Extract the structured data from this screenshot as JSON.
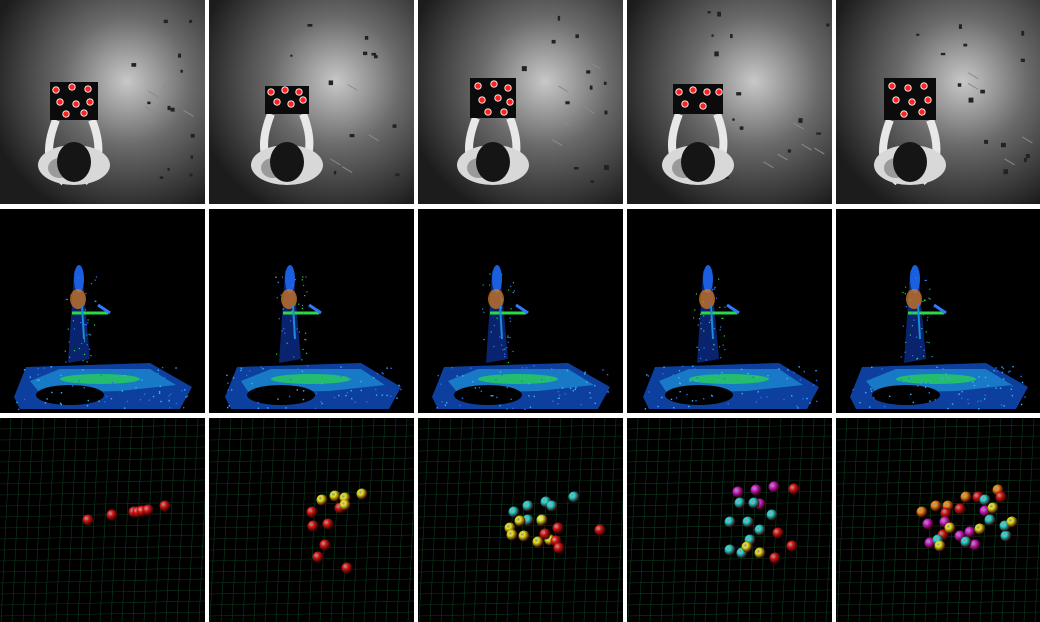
{
  "figure": {
    "rows": [
      {
        "name": "camera-frames",
        "kind": "grayscale-overhead-view",
        "count": 5
      },
      {
        "name": "depth-point-clouds",
        "kind": "colored-point-cloud",
        "count": 5
      },
      {
        "name": "marker-reconstructions",
        "kind": "3d-sphere-markers",
        "count": 5
      }
    ],
    "colors": {
      "marker_red": "#e01818",
      "marker_yellow": "#e6e61a",
      "marker_cyan": "#20d6d0",
      "marker_magenta": "#d020d0",
      "marker_orange": "#f08a10",
      "cloud_blue": "#1a5fe0",
      "cloud_green": "#2ad84a",
      "grid_line": "#0e3a1c"
    },
    "marker_counts": [
      {
        "red": 7
      },
      {
        "red": 7,
        "yellow": 5
      },
      {
        "red": 5,
        "yellow": 7,
        "cyan": 7
      },
      {
        "red": 5,
        "cyan": 9,
        "magenta": 5,
        "yellow": 4
      },
      {
        "red": 5,
        "orange": 5,
        "magenta": 7,
        "cyan": 6,
        "yellow": 5
      }
    ]
  }
}
